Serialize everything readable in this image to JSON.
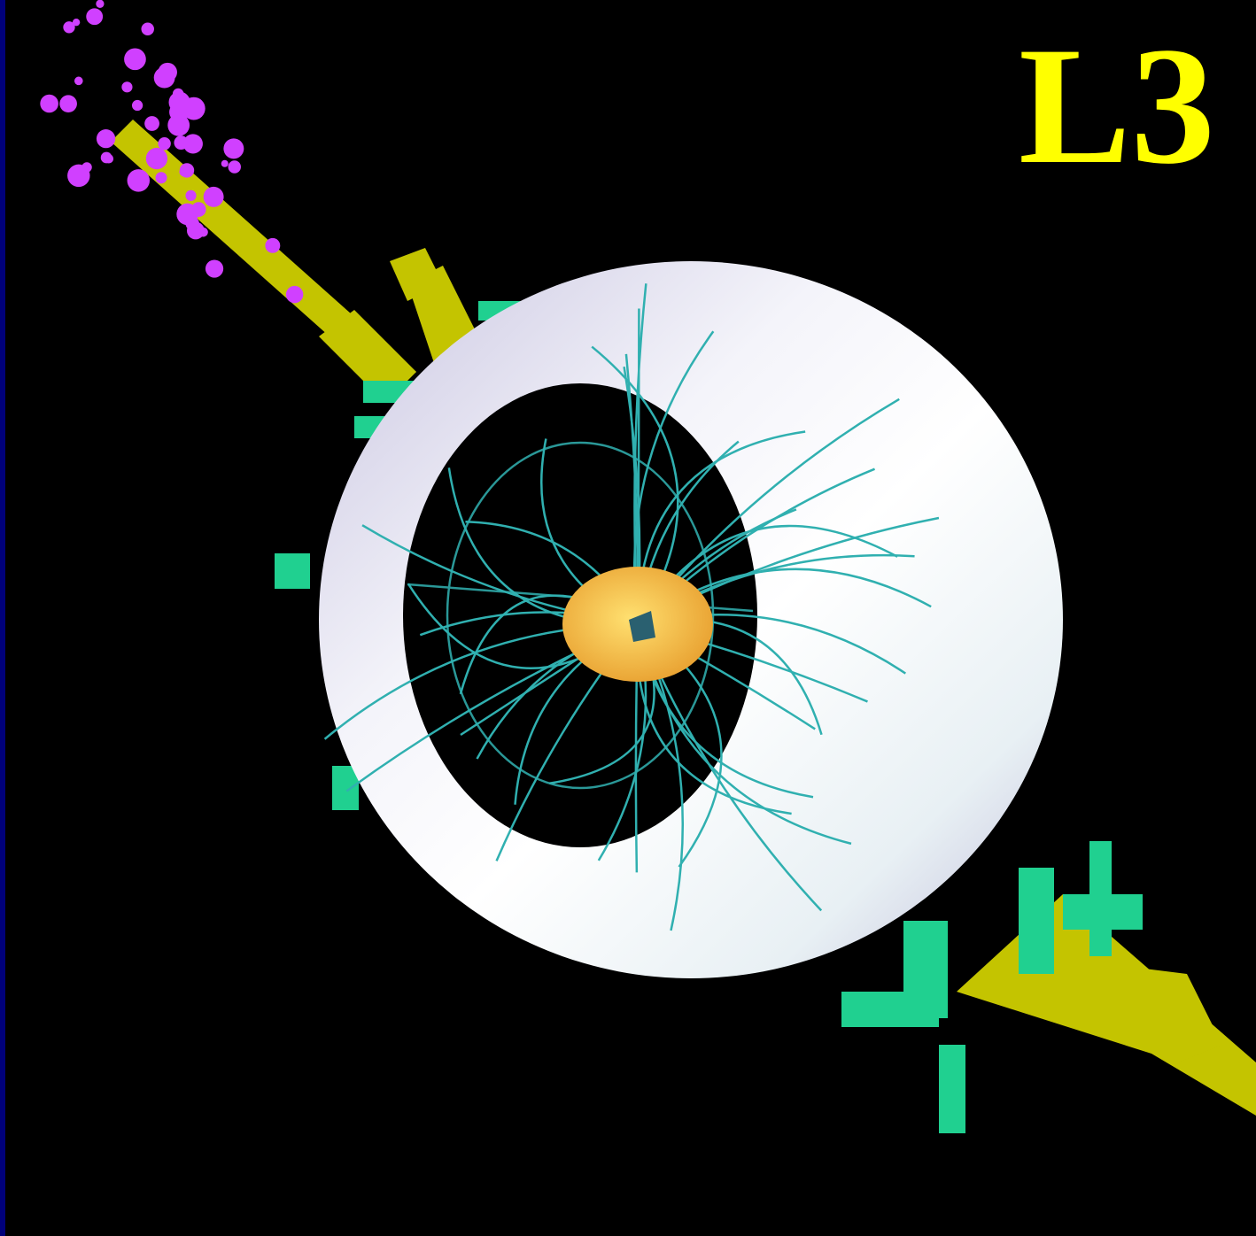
{
  "logo": "L3"
}
